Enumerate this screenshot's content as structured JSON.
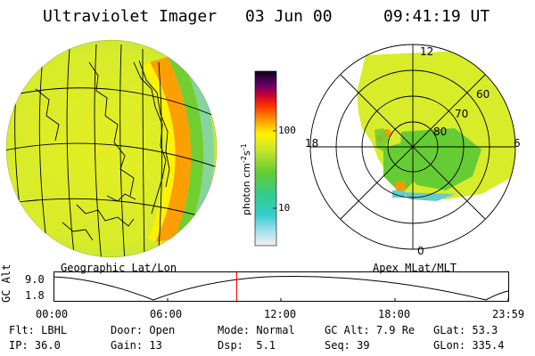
{
  "header": {
    "instrument": "Ultraviolet Imager",
    "date": "03 Jun 00",
    "time": "09:41:19 UT"
  },
  "colorbar": {
    "unit_label": "photon cm",
    "unit_sup1": "-2",
    "unit_mid": "s",
    "unit_sup2": "-1",
    "tick_100": "100",
    "tick_10": "10"
  },
  "left_panel": {
    "caption": "Geographic Lat/Lon"
  },
  "right_panel": {
    "caption": "Apex MLat/MLT",
    "mlt_12": "12",
    "mlt_18": "18",
    "mlt_6": "6",
    "mlt_0": "0",
    "lat_60": "60",
    "lat_70": "70",
    "lat_80": "80"
  },
  "altitude_plot": {
    "ylabel": "GC Alt",
    "ytick_top": "9.0",
    "ytick_bottom": "1.8",
    "xticks": [
      "00:00",
      "06:00",
      "12:00",
      "18:00",
      "23:59"
    ],
    "current_time_fraction": 0.403,
    "marker_color": "#ff0000"
  },
  "footer": {
    "flt_label": "Flt:",
    "flt_value": "LBHL",
    "ip_label": "IP:",
    "ip_value": "36.0",
    "door_label": "Door:",
    "door_value": "Open",
    "gain_label": "Gain:",
    "gain_value": "13",
    "mode_label": "Mode:",
    "mode_value": "Normal",
    "dsp_label": "Dsp:",
    "dsp_value": "5.1",
    "gcalt_label": "GC Alt:",
    "gcalt_value": "7.9 Re",
    "seq_label": "Seq:",
    "seq_value": "39",
    "glat_label": "GLat:",
    "glat_value": "53.3",
    "glon_label": "GLon:",
    "glon_value": "335.4"
  },
  "colors": {
    "background": "#ffffff",
    "image_yellow": "#e8ee1e",
    "image_green": "#66cc33",
    "image_orange": "#ff9900",
    "image_cyan": "#33cccc"
  }
}
